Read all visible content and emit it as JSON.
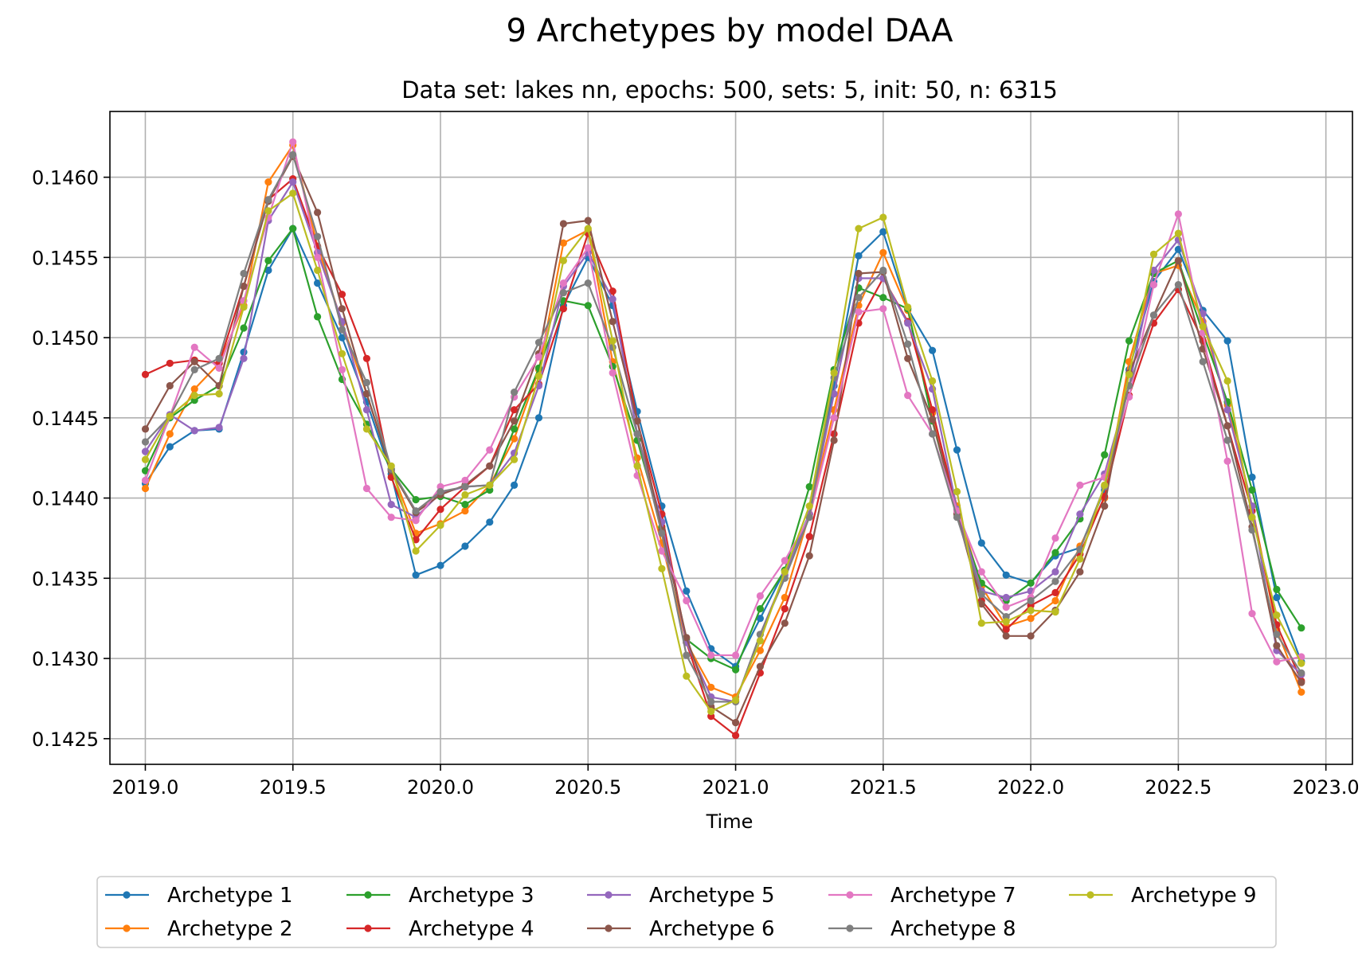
{
  "chart_data": {
    "type": "line",
    "title": "9 Archetypes by model DAA",
    "subtitle": "Data set: lakes nn, epochs: 500, sets: 5, init: 50, n: 6315",
    "xlabel": "Time",
    "ylabel": "",
    "xlim": [
      2018.88,
      2023.09
    ],
    "ylim": [
      0.14234,
      0.14641
    ],
    "x_ticks": [
      2019.0,
      2019.5,
      2020.0,
      2020.5,
      2021.0,
      2021.5,
      2022.0,
      2022.5,
      2023.0
    ],
    "x_tick_labels": [
      "2019.0",
      "2019.5",
      "2020.0",
      "2020.5",
      "2021.0",
      "2021.5",
      "2022.0",
      "2022.5",
      "2023.0"
    ],
    "y_ticks": [
      0.1425,
      0.143,
      0.1435,
      0.144,
      0.1445,
      0.145,
      0.1455,
      0.146
    ],
    "y_tick_labels": [
      "0.1425",
      "0.1430",
      "0.1435",
      "0.1440",
      "0.1445",
      "0.1450",
      "0.1455",
      "0.1460"
    ],
    "grid": true,
    "legend_position": "bottom-center",
    "legend_columns": 5,
    "x": [
      2019.0,
      2019.0833,
      2019.1667,
      2019.25,
      2019.3333,
      2019.4167,
      2019.5,
      2019.5833,
      2019.6667,
      2019.75,
      2019.8333,
      2019.9167,
      2020.0,
      2020.0833,
      2020.1667,
      2020.25,
      2020.3333,
      2020.4167,
      2020.5,
      2020.5833,
      2020.6667,
      2020.75,
      2020.8333,
      2020.9167,
      2021.0,
      2021.0833,
      2021.1667,
      2021.25,
      2021.3333,
      2021.4167,
      2021.5,
      2021.5833,
      2021.6667,
      2021.75,
      2021.8333,
      2021.9167,
      2022.0,
      2022.0833,
      2022.1667,
      2022.25,
      2022.3333,
      2022.4167,
      2022.5,
      2022.5833,
      2022.6667,
      2022.75,
      2022.8333,
      2022.9167
    ],
    "series": [
      {
        "name": "Archetype 1",
        "color": "#1f77b4",
        "values": [
          0.14409,
          0.14432,
          0.14442,
          0.14443,
          0.14491,
          0.14542,
          0.14568,
          0.14534,
          0.145,
          0.1446,
          0.14415,
          0.14352,
          0.14358,
          0.1437,
          0.14385,
          0.14408,
          0.1445,
          0.1452,
          0.1455,
          0.1452,
          0.14454,
          0.14395,
          0.14342,
          0.14306,
          0.14295,
          0.14325,
          0.14355,
          0.1439,
          0.1447,
          0.14551,
          0.14566,
          0.14518,
          0.14492,
          0.1443,
          0.14372,
          0.14352,
          0.14347,
          0.14364,
          0.14369,
          0.14405,
          0.1448,
          0.14535,
          0.14555,
          0.14517,
          0.14498,
          0.14413,
          0.14338,
          0.14298
        ]
      },
      {
        "name": "Archetype 2",
        "color": "#ff7f0e",
        "values": [
          0.14406,
          0.1444,
          0.14468,
          0.14484,
          0.1452,
          0.14597,
          0.1462,
          0.14557,
          0.14509,
          0.14465,
          0.14418,
          0.14378,
          0.14384,
          0.14392,
          0.14408,
          0.14437,
          0.1448,
          0.14559,
          0.14567,
          0.14485,
          0.14425,
          0.14372,
          0.1431,
          0.14282,
          0.14276,
          0.14305,
          0.14338,
          0.1439,
          0.14455,
          0.1452,
          0.14553,
          0.14517,
          0.14453,
          0.14395,
          0.14345,
          0.1432,
          0.14325,
          0.14336,
          0.1437,
          0.144,
          0.14485,
          0.1454,
          0.14545,
          0.1451,
          0.14458,
          0.14395,
          0.14318,
          0.14279
        ]
      },
      {
        "name": "Archetype 3",
        "color": "#2ca02c",
        "values": [
          0.14417,
          0.1445,
          0.14461,
          0.1447,
          0.14506,
          0.14548,
          0.14568,
          0.14513,
          0.14474,
          0.14446,
          0.14418,
          0.14399,
          0.14401,
          0.14396,
          0.14405,
          0.14443,
          0.14481,
          0.14523,
          0.1452,
          0.14482,
          0.14436,
          0.14382,
          0.14312,
          0.143,
          0.14293,
          0.14331,
          0.14355,
          0.14407,
          0.1448,
          0.14531,
          0.14525,
          0.14518,
          0.14448,
          0.1439,
          0.14347,
          0.14336,
          0.14347,
          0.14366,
          0.14387,
          0.14427,
          0.14498,
          0.1454,
          0.14548,
          0.14503,
          0.1446,
          0.14405,
          0.14343,
          0.14319
        ]
      },
      {
        "name": "Archetype 4",
        "color": "#d62728",
        "values": [
          0.14477,
          0.14484,
          0.14486,
          0.14484,
          0.14532,
          0.14586,
          0.14599,
          0.14557,
          0.14527,
          0.14487,
          0.14413,
          0.14374,
          0.14393,
          0.14407,
          0.1442,
          0.14455,
          0.14471,
          0.14518,
          0.14565,
          0.14529,
          0.14448,
          0.1439,
          0.1431,
          0.14264,
          0.14252,
          0.14291,
          0.14331,
          0.14376,
          0.1444,
          0.14509,
          0.14537,
          0.1451,
          0.14455,
          0.14392,
          0.14336,
          0.14318,
          0.14333,
          0.14341,
          0.14365,
          0.14401,
          0.14464,
          0.14509,
          0.1453,
          0.14498,
          0.14445,
          0.14392,
          0.14321,
          0.14286
        ]
      },
      {
        "name": "Archetype 5",
        "color": "#9467bd",
        "values": [
          0.14429,
          0.14452,
          0.14442,
          0.14444,
          0.14487,
          0.14573,
          0.14597,
          0.14553,
          0.1451,
          0.14455,
          0.14396,
          0.14388,
          0.14403,
          0.14407,
          0.14408,
          0.14428,
          0.1447,
          0.14532,
          0.14553,
          0.14524,
          0.1444,
          0.14385,
          0.1431,
          0.14276,
          0.14273,
          0.14315,
          0.14352,
          0.1439,
          0.14465,
          0.14537,
          0.14537,
          0.14509,
          0.14468,
          0.14393,
          0.14342,
          0.14338,
          0.14342,
          0.14354,
          0.1439,
          0.14415,
          0.1447,
          0.14542,
          0.14561,
          0.14515,
          0.14455,
          0.14395,
          0.14305,
          0.1429
        ]
      },
      {
        "name": "Archetype 6",
        "color": "#8c564b",
        "values": [
          0.14443,
          0.1447,
          0.14485,
          0.1447,
          0.14532,
          0.14585,
          0.14613,
          0.14578,
          0.14518,
          0.14465,
          0.14417,
          0.14391,
          0.14402,
          0.14408,
          0.1442,
          0.14448,
          0.1449,
          0.14571,
          0.14573,
          0.1451,
          0.14448,
          0.1438,
          0.14313,
          0.1427,
          0.1426,
          0.14295,
          0.14322,
          0.14364,
          0.14436,
          0.1454,
          0.14541,
          0.14487,
          0.14449,
          0.1439,
          0.14334,
          0.14314,
          0.14314,
          0.1433,
          0.14354,
          0.14395,
          0.14478,
          0.14514,
          0.14548,
          0.14493,
          0.14445,
          0.14382,
          0.14308,
          0.14285
        ]
      },
      {
        "name": "Archetype 7",
        "color": "#e377c2",
        "values": [
          0.14411,
          0.14451,
          0.14494,
          0.14481,
          0.14523,
          0.14575,
          0.14622,
          0.1455,
          0.1448,
          0.14406,
          0.14388,
          0.14386,
          0.14407,
          0.14411,
          0.1443,
          0.14463,
          0.14488,
          0.14534,
          0.14556,
          0.14478,
          0.14414,
          0.14367,
          0.14336,
          0.14302,
          0.14302,
          0.14339,
          0.14361,
          0.14388,
          0.1445,
          0.14516,
          0.14518,
          0.14464,
          0.1444,
          0.14392,
          0.14354,
          0.14332,
          0.14338,
          0.14375,
          0.14408,
          0.14413,
          0.14463,
          0.14533,
          0.14577,
          0.14503,
          0.14423,
          0.14328,
          0.14298,
          0.14301
        ]
      },
      {
        "name": "Archetype 8",
        "color": "#7f7f7f",
        "values": [
          0.14435,
          0.14451,
          0.1448,
          0.14487,
          0.1454,
          0.14586,
          0.14614,
          0.14563,
          0.14505,
          0.14472,
          0.14418,
          0.14392,
          0.14404,
          0.14407,
          0.14408,
          0.14466,
          0.14497,
          0.14528,
          0.14534,
          0.14494,
          0.1444,
          0.14378,
          0.14302,
          0.14273,
          0.14273,
          0.14315,
          0.1435,
          0.14388,
          0.14475,
          0.14525,
          0.14542,
          0.14496,
          0.1444,
          0.14388,
          0.1434,
          0.14326,
          0.14336,
          0.14348,
          0.14368,
          0.14407,
          0.1447,
          0.14514,
          0.14533,
          0.14485,
          0.14436,
          0.1438,
          0.14315,
          0.14291
        ]
      },
      {
        "name": "Archetype 9",
        "color": "#bcbd22",
        "values": [
          0.14424,
          0.14451,
          0.14464,
          0.14465,
          0.14519,
          0.14579,
          0.1459,
          0.14542,
          0.1449,
          0.14443,
          0.1442,
          0.14367,
          0.14383,
          0.14402,
          0.14408,
          0.14424,
          0.14476,
          0.14548,
          0.14568,
          0.14498,
          0.1442,
          0.14356,
          0.14289,
          0.14267,
          0.14274,
          0.14311,
          0.14354,
          0.14395,
          0.14478,
          0.14568,
          0.14575,
          0.14519,
          0.14473,
          0.14404,
          0.14322,
          0.14323,
          0.1433,
          0.14329,
          0.14362,
          0.14408,
          0.14477,
          0.14552,
          0.14565,
          0.14507,
          0.14473,
          0.14388,
          0.14327,
          0.14297
        ]
      }
    ]
  }
}
